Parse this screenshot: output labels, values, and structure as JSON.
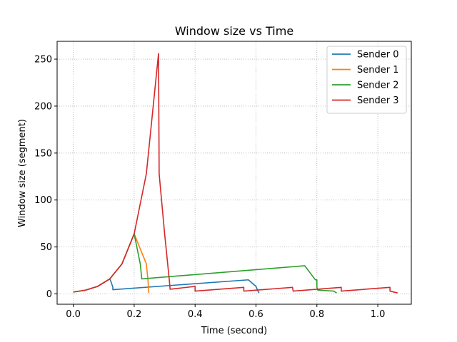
{
  "chart_data": {
    "type": "line",
    "title": "Window size vs Time",
    "xlabel": "Time (second)",
    "ylabel": "Window size (segment)",
    "xlim": [
      -0.053,
      1.11
    ],
    "ylim": [
      -11,
      269
    ],
    "xticks": [
      0.0,
      0.2,
      0.4,
      0.6,
      0.8,
      1.0
    ],
    "xtick_labels": [
      "0.0",
      "0.2",
      "0.4",
      "0.6",
      "0.8",
      "1.0"
    ],
    "yticks": [
      0,
      50,
      100,
      150,
      200,
      250
    ],
    "ytick_labels": [
      "0",
      "50",
      "100",
      "150",
      "200",
      "250"
    ],
    "grid": true,
    "legend_position": "top-right",
    "series": [
      {
        "name": "Sender 0",
        "color": "#1f77b4",
        "points": [
          [
            0.0,
            2
          ],
          [
            0.04,
            4
          ],
          [
            0.08,
            8
          ],
          [
            0.12,
            16
          ],
          [
            0.125,
            12
          ],
          [
            0.13,
            7
          ],
          [
            0.13,
            4.5
          ],
          [
            0.575,
            15
          ],
          [
            0.6,
            8
          ],
          [
            0.605,
            4
          ],
          [
            0.61,
            1
          ]
        ]
      },
      {
        "name": "Sender 1",
        "color": "#ff7f0e",
        "points": [
          [
            0.0,
            2
          ],
          [
            0.04,
            4
          ],
          [
            0.08,
            8
          ],
          [
            0.12,
            16
          ],
          [
            0.16,
            32
          ],
          [
            0.2,
            64
          ],
          [
            0.24,
            32
          ],
          [
            0.245,
            16
          ],
          [
            0.248,
            1
          ]
        ]
      },
      {
        "name": "Sender 2",
        "color": "#2ca02c",
        "points": [
          [
            0.0,
            2
          ],
          [
            0.04,
            4
          ],
          [
            0.08,
            8
          ],
          [
            0.12,
            16
          ],
          [
            0.16,
            32
          ],
          [
            0.2,
            64
          ],
          [
            0.22,
            32
          ],
          [
            0.225,
            16
          ],
          [
            0.76,
            30
          ],
          [
            0.795,
            15
          ],
          [
            0.8,
            15
          ],
          [
            0.8,
            7
          ],
          [
            0.803,
            4
          ],
          [
            0.855,
            3
          ],
          [
            0.865,
            1
          ]
        ]
      },
      {
        "name": "Sender 3",
        "color": "#d62728",
        "points": [
          [
            0.0,
            2
          ],
          [
            0.04,
            4
          ],
          [
            0.08,
            8
          ],
          [
            0.12,
            16
          ],
          [
            0.16,
            32
          ],
          [
            0.2,
            64
          ],
          [
            0.24,
            128
          ],
          [
            0.28,
            256
          ],
          [
            0.282,
            128
          ],
          [
            0.3,
            64
          ],
          [
            0.31,
            32
          ],
          [
            0.315,
            16
          ],
          [
            0.318,
            5
          ],
          [
            0.4,
            8
          ],
          [
            0.4,
            3
          ],
          [
            0.56,
            7
          ],
          [
            0.56,
            3
          ],
          [
            0.72,
            7
          ],
          [
            0.722,
            3
          ],
          [
            0.88,
            7
          ],
          [
            0.88,
            3
          ],
          [
            1.04,
            7
          ],
          [
            1.04,
            3
          ],
          [
            1.065,
            1
          ]
        ]
      }
    ]
  }
}
